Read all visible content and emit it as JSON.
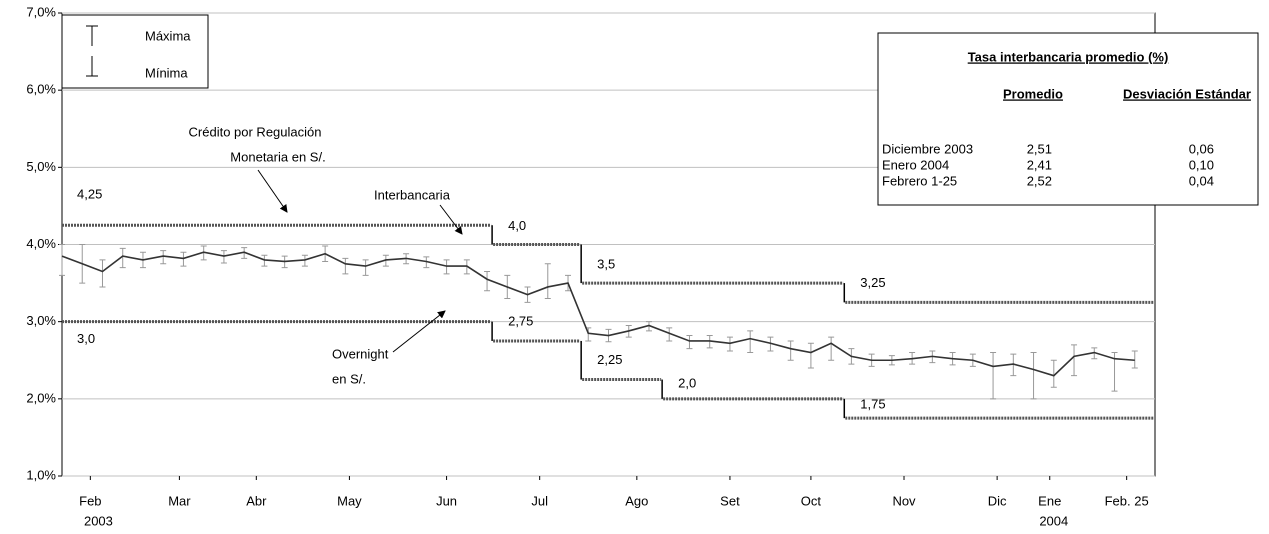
{
  "chart_data": {
    "type": "line",
    "ylim": [
      1,
      7
    ],
    "yticks": [
      {
        "value": 1,
        "label": "1,0%"
      },
      {
        "value": 2,
        "label": "2,0%"
      },
      {
        "value": 3,
        "label": "3,0%"
      },
      {
        "value": 4,
        "label": "4,0%"
      },
      {
        "value": 5,
        "label": "5,0%"
      },
      {
        "value": 6,
        "label": "6,0%"
      },
      {
        "value": 7,
        "label": "7,0%"
      }
    ],
    "grid": true,
    "xlim": [
      0,
      270
    ],
    "xticks": [
      {
        "value": 7,
        "label": "Feb"
      },
      {
        "value": 29,
        "label": "Mar"
      },
      {
        "value": 48,
        "label": "Abr"
      },
      {
        "value": 71,
        "label": "May"
      },
      {
        "value": 95,
        "label": "Jun"
      },
      {
        "value": 118,
        "label": "Jul"
      },
      {
        "value": 142,
        "label": "Ago"
      },
      {
        "value": 165,
        "label": "Set"
      },
      {
        "value": 185,
        "label": "Oct"
      },
      {
        "value": 208,
        "label": "Nov"
      },
      {
        "value": 231,
        "label": "Dic"
      },
      {
        "value": 244,
        "label": "Ene"
      },
      {
        "value": 263,
        "label": "Feb. 25"
      }
    ],
    "year_labels": [
      {
        "value": 9,
        "label": "2003"
      },
      {
        "value": 245,
        "label": "2004"
      }
    ],
    "series": [
      {
        "style": "errorbar",
        "color": "#333333",
        "bar_color": "#999999",
        "x": [
          0,
          5,
          10,
          15,
          20,
          25,
          30,
          35,
          40,
          45,
          50,
          55,
          60,
          65,
          70,
          75,
          80,
          85,
          90,
          95,
          100,
          105,
          110,
          115,
          120,
          125,
          130,
          135,
          140,
          145,
          150,
          155,
          160,
          165,
          170,
          175,
          180,
          185,
          190,
          195,
          200,
          205,
          210,
          215,
          220,
          225,
          230,
          235,
          240,
          245,
          250,
          255,
          260,
          265
        ],
        "values": [
          3.85,
          3.75,
          3.65,
          3.85,
          3.8,
          3.85,
          3.82,
          3.9,
          3.85,
          3.9,
          3.8,
          3.78,
          3.8,
          3.88,
          3.75,
          3.72,
          3.8,
          3.82,
          3.78,
          3.72,
          3.72,
          3.55,
          3.45,
          3.35,
          3.45,
          3.5,
          2.85,
          2.82,
          2.88,
          2.95,
          2.85,
          2.75,
          2.75,
          2.72,
          2.78,
          2.72,
          2.65,
          2.6,
          2.72,
          2.55,
          2.5,
          2.5,
          2.52,
          2.55,
          2.52,
          2.5,
          2.42,
          2.45,
          2.38,
          2.3,
          2.55,
          2.6,
          2.52,
          2.5
        ],
        "high": [
          4.0,
          4.0,
          3.8,
          3.95,
          3.9,
          3.92,
          3.9,
          3.98,
          3.92,
          3.96,
          3.86,
          3.85,
          3.86,
          3.98,
          3.82,
          3.8,
          3.86,
          3.88,
          3.84,
          3.8,
          3.8,
          3.65,
          3.6,
          3.45,
          3.75,
          3.6,
          2.92,
          2.9,
          2.95,
          3.0,
          2.92,
          2.82,
          2.82,
          2.8,
          2.88,
          2.8,
          2.75,
          2.72,
          2.8,
          2.65,
          2.58,
          2.56,
          2.6,
          2.62,
          2.6,
          2.58,
          2.6,
          2.58,
          2.6,
          2.5,
          2.7,
          2.66,
          2.6,
          2.62
        ],
        "low": [
          3.6,
          3.5,
          3.45,
          3.7,
          3.7,
          3.75,
          3.72,
          3.8,
          3.76,
          3.82,
          3.72,
          3.7,
          3.72,
          3.78,
          3.62,
          3.6,
          3.72,
          3.75,
          3.7,
          3.62,
          3.62,
          3.4,
          3.3,
          3.25,
          3.3,
          3.4,
          2.75,
          2.74,
          2.8,
          2.88,
          2.75,
          2.65,
          2.66,
          2.62,
          2.6,
          2.62,
          2.5,
          2.4,
          2.5,
          2.45,
          2.42,
          2.44,
          2.45,
          2.47,
          2.44,
          2.42,
          2.0,
          2.3,
          2.0,
          2.15,
          2.3,
          2.52,
          2.1,
          2.4
        ]
      },
      {
        "style": "step",
        "color": "#555555",
        "x": [
          0,
          106,
          128,
          193
        ],
        "values": [
          4.25,
          4.0,
          3.5,
          3.25
        ],
        "value_labels": [
          "4,25",
          "4,0",
          "3,5",
          "3,25"
        ]
      },
      {
        "style": "step",
        "color": "#555555",
        "x": [
          0,
          106,
          128,
          148,
          193
        ],
        "values": [
          3.0,
          2.75,
          2.25,
          2.0,
          1.75
        ],
        "value_labels": [
          "3,0",
          "2,75",
          "2,25",
          "2,0",
          "1,75"
        ]
      }
    ],
    "annotations": [
      "Crédito por Regulación",
      "Monetaria en S/.",
      "Interbancaria",
      "Overnight",
      "en S/."
    ],
    "legend": {
      "position": "top-left",
      "labels": [
        "Máxima",
        "Mínima"
      ]
    },
    "table": {
      "title": "Tasa interbancaria promedio (%)",
      "headers": [
        "Promedio",
        "Desviación Estándar"
      ],
      "rows": [
        [
          "Diciembre 2003",
          "2,51",
          "0,06"
        ],
        [
          "Enero 2004",
          "2,41",
          "0,10"
        ],
        [
          "Febrero 1-25",
          "2,52",
          "0,04"
        ]
      ]
    }
  }
}
